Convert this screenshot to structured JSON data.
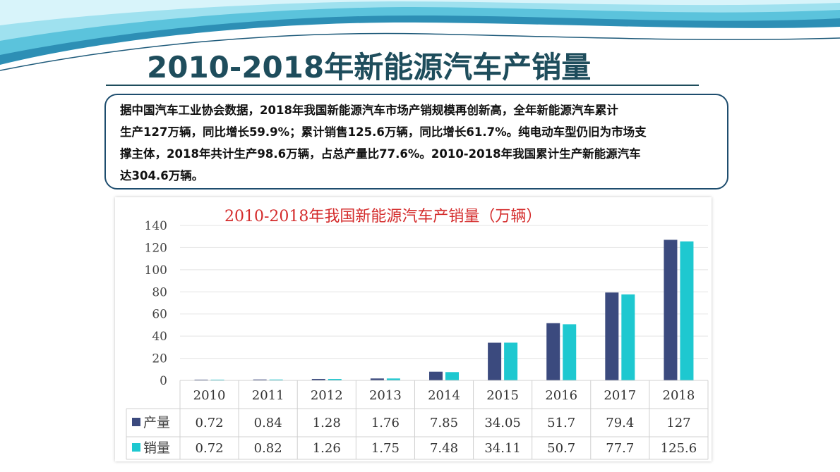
{
  "slide": {
    "title": "2010-2018年新能源汽车产销量",
    "text_lines": [
      "据中国汽车工业协会数据，2018年我国新能源汽车市场产销规模再创新高，全年新能源汽车累计",
      "生产127万辆，同比增长59.9%；累计销售125.6万辆，同比增长61.7%。纯电动车型仍旧为市场支",
      "撑主体，2018年共计生产98.6万辆，占总产量比77.6%。2010-2018年我国累计生产新能源汽车",
      "达304.6万辆。"
    ]
  },
  "chart_data": {
    "type": "bar",
    "title": "2010-2018年我国新能源汽车产销量（万辆）",
    "categories": [
      "2010",
      "2011",
      "2012",
      "2013",
      "2014",
      "2015",
      "2016",
      "2017",
      "2018"
    ],
    "series": [
      {
        "name": "产量",
        "color": "#3b4a7e",
        "values": [
          0.72,
          0.84,
          1.28,
          1.76,
          7.85,
          34.05,
          51.7,
          79.4,
          127
        ]
      },
      {
        "name": "销量",
        "color": "#1ec8d0",
        "values": [
          0.72,
          0.82,
          1.26,
          1.75,
          7.48,
          34.11,
          50.7,
          77.7,
          125.6
        ]
      }
    ],
    "value_labels": [
      [
        "0.72",
        "0.84",
        "1.28",
        "1.76",
        "7.85",
        "34.05",
        "51.7",
        "79.4",
        "127"
      ],
      [
        "0.72",
        "0.82",
        "1.26",
        "1.75",
        "7.48",
        "34.11",
        "50.7",
        "77.7",
        "125.6"
      ]
    ],
    "y_ticks": [
      "0",
      "20",
      "40",
      "60",
      "80",
      "100",
      "120",
      "140"
    ],
    "ylim": [
      0,
      140
    ],
    "grid": true,
    "legend": "data table"
  }
}
